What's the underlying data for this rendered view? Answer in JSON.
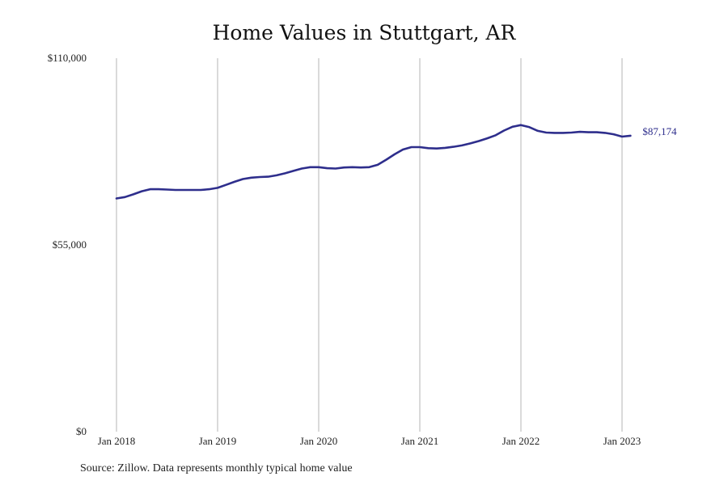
{
  "chart_data": {
    "type": "line",
    "title": "Home Values in Stuttgart, AR",
    "xlabel": "",
    "ylabel": "",
    "ylim": [
      0,
      110000
    ],
    "y_ticks": [
      {
        "value": 0,
        "label": "$0"
      },
      {
        "value": 55000,
        "label": "$55,000"
      },
      {
        "value": 110000,
        "label": "$110,000"
      }
    ],
    "x_ticks": [
      {
        "value": 2018.0,
        "label": "Jan 2018"
      },
      {
        "value": 2019.0,
        "label": "Jan 2019"
      },
      {
        "value": 2020.0,
        "label": "Jan 2020"
      },
      {
        "value": 2021.0,
        "label": "Jan 2021"
      },
      {
        "value": 2022.0,
        "label": "Jan 2022"
      },
      {
        "value": 2023.0,
        "label": "Jan 2023"
      }
    ],
    "xlim": [
      2017.75,
      2023.5
    ],
    "grid": "vertical",
    "line_color": "#2e2e8c",
    "grid_color": "#b5b5b5",
    "series": [
      {
        "points": [
          [
            2018.0,
            68700
          ],
          [
            2018.083,
            69100
          ],
          [
            2018.167,
            69900
          ],
          [
            2018.25,
            70800
          ],
          [
            2018.333,
            71400
          ],
          [
            2018.417,
            71400
          ],
          [
            2018.5,
            71300
          ],
          [
            2018.583,
            71200
          ],
          [
            2018.667,
            71200
          ],
          [
            2018.75,
            71200
          ],
          [
            2018.833,
            71200
          ],
          [
            2018.917,
            71400
          ],
          [
            2019.0,
            71800
          ],
          [
            2019.083,
            72700
          ],
          [
            2019.167,
            73600
          ],
          [
            2019.25,
            74400
          ],
          [
            2019.333,
            74800
          ],
          [
            2019.417,
            75000
          ],
          [
            2019.5,
            75100
          ],
          [
            2019.583,
            75500
          ],
          [
            2019.667,
            76100
          ],
          [
            2019.75,
            76800
          ],
          [
            2019.833,
            77500
          ],
          [
            2019.917,
            77900
          ],
          [
            2020.0,
            77900
          ],
          [
            2020.083,
            77600
          ],
          [
            2020.167,
            77500
          ],
          [
            2020.25,
            77800
          ],
          [
            2020.333,
            77900
          ],
          [
            2020.417,
            77800
          ],
          [
            2020.5,
            77900
          ],
          [
            2020.583,
            78600
          ],
          [
            2020.667,
            80100
          ],
          [
            2020.75,
            81700
          ],
          [
            2020.833,
            83100
          ],
          [
            2020.917,
            83800
          ],
          [
            2021.0,
            83800
          ],
          [
            2021.083,
            83500
          ],
          [
            2021.167,
            83400
          ],
          [
            2021.25,
            83600
          ],
          [
            2021.333,
            83900
          ],
          [
            2021.417,
            84300
          ],
          [
            2021.5,
            84900
          ],
          [
            2021.583,
            85600
          ],
          [
            2021.667,
            86400
          ],
          [
            2021.75,
            87300
          ],
          [
            2021.833,
            88700
          ],
          [
            2021.917,
            89800
          ],
          [
            2022.0,
            90300
          ],
          [
            2022.083,
            89700
          ],
          [
            2022.167,
            88600
          ],
          [
            2022.25,
            88100
          ],
          [
            2022.333,
            88000
          ],
          [
            2022.417,
            88000
          ],
          [
            2022.5,
            88100
          ],
          [
            2022.583,
            88300
          ],
          [
            2022.667,
            88200
          ],
          [
            2022.75,
            88200
          ],
          [
            2022.833,
            88000
          ],
          [
            2022.917,
            87600
          ],
          [
            2023.0,
            86900
          ],
          [
            2023.083,
            87174
          ]
        ]
      }
    ],
    "last_value_label": "$87,174"
  },
  "footer": {
    "source": "Source: Zillow. Data represents monthly typical home value"
  }
}
